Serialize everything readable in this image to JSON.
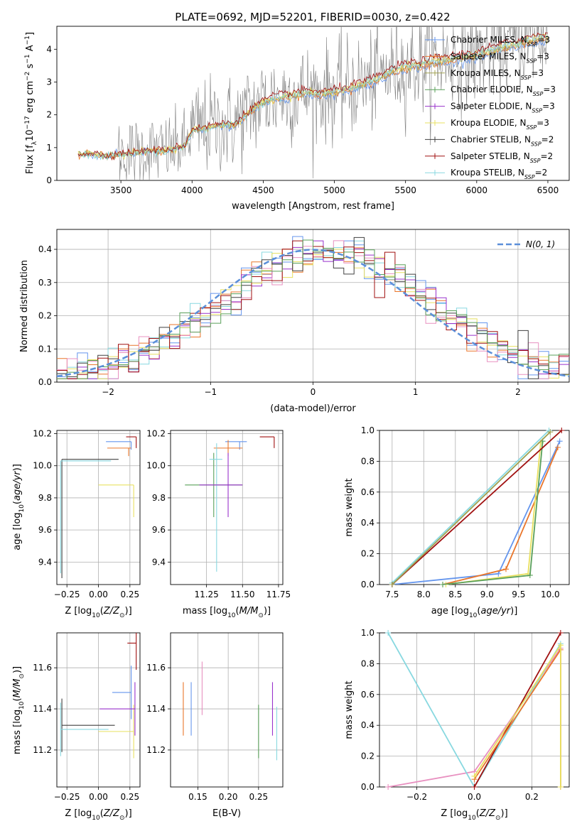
{
  "figure": {
    "title": "PLATE=0692, MJD=52201, FIBERID=0030, z=0.422",
    "legend_spectrum": [
      "Chabrier MILES, N_SSP=3",
      "Salpeter MILES, N_SSP=3",
      "Kroupa MILES, N_SSP=3",
      "Chabrier ELODIE, N_SSP=3",
      "Salpeter ELODIE, N_SSP=3",
      "Kroupa ELODIE, N_SSP=3",
      "Chabrier STELIB, N_SSP=2",
      "Salpeter STELIB, N_SSP=2",
      "Kroupa STELIB, N_SSP=2"
    ],
    "legend_hist": "N(0, 1)"
  },
  "colors": {
    "data": "#808080",
    "models": [
      "#6495ED",
      "#E9762B",
      "#A0A050",
      "#5aa05a",
      "#9932CC",
      "#E8E060",
      "#404040",
      "#A01010",
      "#88D8E0"
    ],
    "pink": "#E890C0",
    "gauss": "#5B8FD9",
    "grid": "#b0b0b0"
  },
  "chart_data": [
    {
      "type": "line",
      "panel": "spectrum",
      "xlabel": "wavelength [Angstrom, rest frame]",
      "ylabel": "Flux [f_λ 10^-17 erg cm^-2 s^-1 A^-1]",
      "xlim": [
        3050,
        6650
      ],
      "ylim": [
        0,
        4.7
      ],
      "xticks": [
        3500,
        4000,
        4500,
        5000,
        5500,
        6000,
        6500
      ],
      "yticks": [
        0,
        1,
        2,
        3,
        4
      ],
      "continuum_knots_x": [
        3200,
        3300,
        3400,
        3500,
        3600,
        3700,
        3800,
        3900,
        3950,
        4000,
        4100,
        4200,
        4300,
        4400,
        4500,
        4600,
        4700,
        4800,
        4900,
        5000,
        5100,
        5200,
        5300,
        5400,
        5500,
        5600,
        5700,
        5800,
        5900,
        6000,
        6100,
        6200,
        6300,
        6400,
        6500
      ],
      "continuum_knots_y": [
        0.8,
        0.82,
        0.75,
        0.82,
        0.85,
        0.92,
        0.9,
        1.0,
        1.05,
        1.55,
        1.62,
        1.7,
        1.72,
        2.1,
        2.4,
        2.55,
        2.62,
        2.7,
        2.65,
        2.72,
        2.82,
        2.95,
        3.1,
        3.35,
        3.5,
        3.55,
        3.65,
        3.72,
        3.78,
        3.85,
        3.98,
        4.1,
        4.2,
        4.32,
        4.4
      ],
      "data_range": [
        3200,
        6500
      ],
      "model_range": [
        3200,
        6500
      ],
      "legend_loc": "upper right"
    },
    {
      "type": "histogram",
      "panel": "residuals",
      "xlabel": "(data-model)/error",
      "ylabel": "Normed distribution",
      "xlim": [
        -2.5,
        2.5
      ],
      "ylim": [
        0,
        0.46
      ],
      "xticks": [
        -2,
        -1,
        0,
        1,
        2
      ],
      "yticks": [
        0.0,
        0.1,
        0.2,
        0.3,
        0.4
      ],
      "bin_width": 0.1,
      "legend_loc": "upper right",
      "gauss": {
        "mean": 0,
        "sigma": 1
      }
    },
    {
      "type": "errorbar",
      "panel": "age-vs-Z",
      "xlabel": "Z [log10(Z/Z⊙)]",
      "ylabel": "age  [log10(age/yr)]",
      "xlim": [
        -0.33,
        0.33
      ],
      "ylim": [
        9.26,
        10.22
      ],
      "xticks": [
        -0.25,
        0.0,
        0.25
      ],
      "yticks": [
        9.4,
        9.6,
        9.8,
        10.0,
        10.2
      ],
      "points": [
        {
          "x": 0.26,
          "y": 10.15,
          "xerr": [
            0.2,
            0.0
          ],
          "yerr": [
            0.05,
            0.0
          ]
        },
        {
          "x": 0.24,
          "y": 10.11,
          "xerr": [
            0.17,
            0.02
          ],
          "yerr": [
            0.05,
            0.0
          ]
        },
        {
          "x": 0.28,
          "y": 9.88,
          "xerr": [
            0.28,
            0.0
          ],
          "yerr": [
            0.2,
            0.0
          ]
        },
        {
          "x": 0.3,
          "y": 10.18,
          "xerr": [
            0.08,
            0.0
          ],
          "yerr": [
            0.07,
            0.0
          ]
        },
        {
          "x": -0.29,
          "y": 10.04,
          "xerr": [
            0.0,
            0.45
          ],
          "yerr": [
            0.74,
            0.0
          ]
        },
        {
          "x": -0.3,
          "y": 10.03,
          "xerr": [
            0.0,
            0.4
          ],
          "yerr": [
            0.7,
            0.0
          ]
        }
      ]
    },
    {
      "type": "errorbar",
      "panel": "age-vs-mass",
      "xlabel": "mass [log10(M/M⊙)]",
      "ylabel": "",
      "xlim": [
        11.0,
        11.78
      ],
      "ylim": [
        9.26,
        10.22
      ],
      "xticks": [
        11.25,
        11.5,
        11.75
      ],
      "yticks": [
        9.4,
        9.6,
        9.8,
        10.0,
        10.2
      ],
      "points": [
        {
          "x": 11.48,
          "y": 10.15,
          "xerr": [
            0.1,
            0.05
          ],
          "yerr": [
            0.05,
            0.0
          ]
        },
        {
          "x": 11.4,
          "y": 10.11,
          "xerr": [
            0.1,
            0.1
          ],
          "yerr": [
            0.05,
            0.05
          ]
        },
        {
          "x": 11.3,
          "y": 9.88,
          "xerr": [
            0.2,
            0.2
          ],
          "yerr": [
            0.2,
            0.2
          ]
        },
        {
          "x": 11.72,
          "y": 10.18,
          "xerr": [
            0.1,
            0.0
          ],
          "yerr": [
            0.07,
            0.0
          ]
        },
        {
          "x": 11.32,
          "y": 10.04,
          "xerr": [
            0.05,
            0.04
          ],
          "yerr": [
            0.7,
            0.1
          ]
        },
        {
          "x": 11.4,
          "y": 9.88,
          "xerr": [
            0.2,
            0.1
          ],
          "yerr": [
            0.2,
            0.2
          ]
        }
      ]
    },
    {
      "type": "line",
      "panel": "mass-weight-vs-age",
      "xlabel": "age  [log10(age/yr)]",
      "ylabel": "mass weight",
      "xlim": [
        7.3,
        10.3
      ],
      "ylim": [
        0,
        1.0
      ],
      "xticks": [
        7.5,
        8.0,
        8.5,
        9.0,
        9.5,
        10.0
      ],
      "yticks": [
        0.0,
        0.2,
        0.4,
        0.6,
        0.8,
        1.0
      ],
      "series": [
        {
          "x": [
            7.5,
            9.18,
            10.15
          ],
          "y": [
            0.0,
            0.07,
            0.93
          ]
        },
        {
          "x": [
            8.3,
            9.3,
            10.12
          ],
          "y": [
            0.0,
            0.1,
            0.89
          ]
        },
        {
          "x": [
            8.35,
            9.65,
            9.85
          ],
          "y": [
            0.0,
            0.07,
            0.92
          ]
        },
        {
          "x": [
            8.3,
            9.68,
            9.88
          ],
          "y": [
            0.0,
            0.06,
            0.93
          ]
        },
        {
          "x": [
            7.5,
            9.98
          ],
          "y": [
            0.01,
            1.0
          ]
        },
        {
          "x": [
            7.5,
            10.18
          ],
          "y": [
            0.0,
            1.0
          ]
        },
        {
          "x": [
            7.5,
            10.0
          ],
          "y": [
            0.0,
            0.99
          ]
        }
      ]
    },
    {
      "type": "errorbar",
      "panel": "mass-vs-Z",
      "xlabel": "Z [log10(Z/Z⊙)]",
      "ylabel": "mass [log10(M/M⊙)]",
      "xlim": [
        -0.33,
        0.33
      ],
      "ylim": [
        11.02,
        11.77
      ],
      "xticks": [
        -0.25,
        0.0,
        0.25
      ],
      "yticks": [
        11.2,
        11.4,
        11.6
      ],
      "points": [
        {
          "x": 0.26,
          "y": 11.48,
          "xerr": [
            0.15,
            0.0
          ]
        },
        {
          "x": 0.28,
          "y": 11.29,
          "xerr": [
            0.28,
            0.0
          ]
        },
        {
          "x": 0.3,
          "y": 11.72,
          "xerr": [
            0.07,
            0.0
          ]
        },
        {
          "x": 0.29,
          "y": 11.4,
          "xerr": [
            0.28,
            0.0
          ]
        },
        {
          "x": -0.29,
          "y": 11.32,
          "xerr": [
            0.0,
            0.42
          ]
        },
        {
          "x": -0.3,
          "y": 11.3,
          "xerr": [
            0.0,
            0.38
          ]
        }
      ]
    },
    {
      "type": "errorbar",
      "panel": "mass-vs-EBV",
      "xlabel": "E(B-V)",
      "ylabel": "",
      "xlim": [
        0.105,
        0.29
      ],
      "ylim": [
        11.02,
        11.77
      ],
      "xticks": [
        0.15,
        0.2,
        0.25
      ],
      "yticks": [
        11.2,
        11.4,
        11.6
      ],
      "points": [
        {
          "x": 0.126,
          "y": 11.4
        },
        {
          "x": 0.139,
          "y": 11.4
        },
        {
          "x": 0.157,
          "y": 11.5
        },
        {
          "x": 0.25,
          "y": 11.29
        },
        {
          "x": 0.273,
          "y": 11.4
        },
        {
          "x": 0.28,
          "y": 11.28
        }
      ]
    },
    {
      "type": "line",
      "panel": "mass-weight-vs-Z",
      "xlabel": "Z [log10(Z/Z⊙)]",
      "ylabel": "mass weight",
      "xlim": [
        -0.33,
        0.33
      ],
      "ylim": [
        0,
        1.0
      ],
      "xticks": [
        -0.2,
        0.0,
        0.2
      ],
      "yticks": [
        0.0,
        0.2,
        0.4,
        0.6,
        0.8,
        1.0
      ],
      "series": [
        {
          "x": [
            -0.3,
            0.0,
            0.3
          ],
          "y": [
            0.0,
            0.1,
            0.9
          ]
        },
        {
          "x": [
            -0.3,
            0.0,
            0.3
          ],
          "y": [
            1.0,
            0.0,
            0.93
          ]
        },
        {
          "x": [
            0.0,
            0.3
          ],
          "y": [
            0.0,
            1.0
          ]
        },
        {
          "x": [
            0.0,
            0.3,
            0.3
          ],
          "y": [
            0.05,
            0.89,
            0.0
          ]
        },
        {
          "x": [
            0.0,
            0.3,
            0.3
          ],
          "y": [
            0.07,
            0.92,
            0.0
          ]
        }
      ]
    }
  ]
}
